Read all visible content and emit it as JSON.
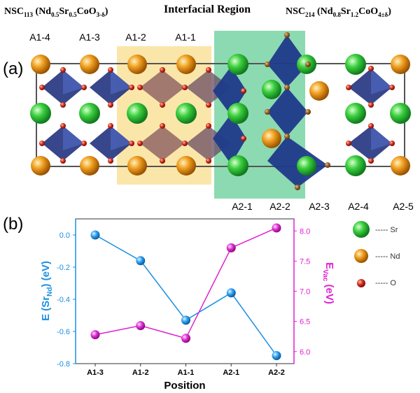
{
  "panel_a": {
    "label": "(a)",
    "header_left": {
      "main": "NSC",
      "sub": "113",
      "formula": " (Nd",
      "s1": "0.5",
      "t2": "Sr",
      "s2": "0.5",
      "t3": "CoO",
      "s3": "3-δ",
      "t4": ")"
    },
    "header_mid": "Interfacial Region",
    "header_right": {
      "main": "NSC",
      "sub": "214",
      "formula": " (Nd",
      "s1": "0.8",
      "t2": "Sr",
      "s2": "1.2",
      "t3": "CoO",
      "s3": "4±δ",
      "t4": ")"
    },
    "top_labels": [
      "A1-4",
      "A1-3",
      "A1-2",
      "A1-1"
    ],
    "bottom_labels": [
      "A2-1",
      "A2-2",
      "A2-3",
      "A2-4",
      "A2-5"
    ],
    "region_colors": {
      "a1": "#fbe3a1",
      "a2": "#7fd6a8"
    }
  },
  "legend": [
    {
      "symbol": "Sr",
      "label": "----- Sr",
      "color": "#2fbf3c"
    },
    {
      "symbol": "Nd",
      "label": "----- Nd",
      "color": "#e08a10"
    },
    {
      "symbol": "O",
      "label": "----- O",
      "color": "#c8281c"
    }
  ],
  "colors": {
    "left_series": "#1a8fe3",
    "right_series": "#e020d0",
    "octahedra": "#1f3a8a"
  },
  "chart_data": {
    "type": "line",
    "panel_label": "(b)",
    "xlabel": "Position",
    "categories": [
      "A1-3",
      "A1-2",
      "A1-1",
      "A2-1",
      "A2-2"
    ],
    "y_left": {
      "label_main": "E (Sr",
      "label_sub": "Nd",
      "label_tail": ") (eV)",
      "ylim": [
        -0.8,
        0.1
      ],
      "ticks": [
        "0.0",
        "-0.2",
        "-0.4",
        "-0.6",
        "-0.8"
      ]
    },
    "y_right": {
      "label_main": "E",
      "label_sub": "Vac",
      "label_tail": " (eV)",
      "ylim": [
        5.8,
        8.2
      ],
      "ticks": [
        "6.0",
        "6.5",
        "7.0",
        "7.5",
        "8.0"
      ]
    },
    "series": [
      {
        "axis": "left",
        "values": [
          0.0,
          -0.16,
          -0.53,
          -0.36,
          -0.75
        ]
      },
      {
        "axis": "right",
        "values": [
          6.28,
          6.43,
          6.22,
          7.72,
          8.05
        ]
      }
    ]
  }
}
